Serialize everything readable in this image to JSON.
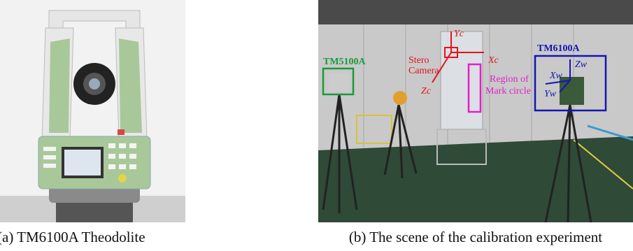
{
  "figure": {
    "panel_a": {
      "caption": "(a) TM6100A Theodolite"
    },
    "panel_b": {
      "caption": "(b) The scene of the calibration experiment",
      "labels": {
        "tm5100a": "TM5100A",
        "tm6100a": "TM6100A",
        "yc": "Yc",
        "xc": "Xc",
        "zc": "Zc",
        "stero": "Stero",
        "camera": "Camera",
        "region": "Region of",
        "mark": "Mark circle",
        "zw": "Zw",
        "xw": "Xw",
        "yw": "Yw"
      }
    }
  }
}
